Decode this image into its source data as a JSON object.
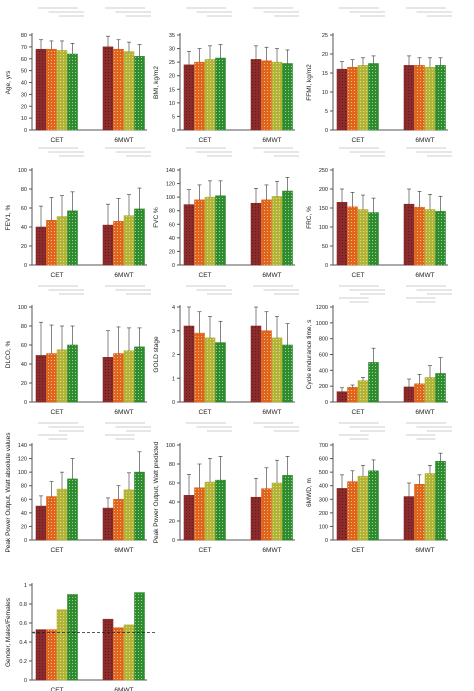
{
  "colors": {
    "series": [
      "#8B2B2B",
      "#E0651A",
      "#B3B336",
      "#2E8B2E"
    ],
    "axis": "#555555",
    "sig_line": "#999999"
  },
  "chart_data": [
    {
      "type": "bar",
      "ylabel": "Age, yrs",
      "ylim": [
        0,
        80
      ],
      "yticks": [
        0,
        10,
        20,
        30,
        40,
        50,
        60,
        70,
        80
      ],
      "categories": [
        "CET",
        "6MWT"
      ],
      "series": [
        {
          "values": [
            68,
            70
          ],
          "errors": [
            8,
            9
          ]
        },
        {
          "values": [
            68,
            68
          ],
          "errors": [
            7,
            8
          ]
        },
        {
          "values": [
            67,
            66
          ],
          "errors": [
            8,
            8
          ]
        },
        {
          "values": [
            64,
            62
          ],
          "errors": [
            9,
            10
          ]
        }
      ],
      "sig_lines": [
        [
          1,
          4
        ],
        [
          5,
          4
        ],
        [
          6,
          3
        ]
      ]
    },
    {
      "type": "bar",
      "ylabel": "BMI, kg/m2",
      "ylim": [
        0,
        35
      ],
      "yticks": [
        0,
        5,
        10,
        15,
        20,
        25,
        30,
        35
      ],
      "categories": [
        "CET",
        "6MWT"
      ],
      "series": [
        {
          "values": [
            24,
            26
          ],
          "errors": [
            5,
            5
          ]
        },
        {
          "values": [
            25,
            25.5
          ],
          "errors": [
            5,
            5
          ]
        },
        {
          "values": [
            26,
            25
          ],
          "errors": [
            5,
            5
          ]
        },
        {
          "values": [
            26.5,
            24.5
          ],
          "errors": [
            5,
            5
          ]
        }
      ],
      "sig_lines": [
        [
          1,
          4
        ],
        [
          5,
          4
        ],
        [
          6,
          3
        ]
      ]
    },
    {
      "type": "bar",
      "ylabel": "FFMI, kg/m2",
      "ylim": [
        0,
        25
      ],
      "yticks": [
        0,
        5,
        10,
        15,
        20,
        25
      ],
      "categories": [
        "CET",
        "6MWT"
      ],
      "series": [
        {
          "values": [
            16,
            17
          ],
          "errors": [
            2,
            2.5
          ]
        },
        {
          "values": [
            16.5,
            17
          ],
          "errors": [
            2,
            2
          ]
        },
        {
          "values": [
            17,
            16.5
          ],
          "errors": [
            2,
            2.5
          ]
        },
        {
          "values": [
            17.5,
            17
          ],
          "errors": [
            2,
            2
          ]
        }
      ],
      "sig_lines": [
        [
          1,
          4
        ],
        [
          2,
          4
        ],
        [
          3,
          3
        ]
      ]
    },
    {
      "type": "bar",
      "ylabel": "FEV1, %",
      "ylim": [
        0,
        100
      ],
      "yticks": [
        0,
        20,
        40,
        60,
        80,
        100
      ],
      "categories": [
        "CET",
        "6MWT"
      ],
      "series": [
        {
          "values": [
            40,
            42
          ],
          "errors": [
            22,
            22
          ]
        },
        {
          "values": [
            47,
            46
          ],
          "errors": [
            24,
            24
          ]
        },
        {
          "values": [
            51,
            52
          ],
          "errors": [
            22,
            22
          ]
        },
        {
          "values": [
            57,
            59
          ],
          "errors": [
            20,
            22
          ]
        }
      ],
      "sig_lines": [
        [
          1,
          4
        ],
        [
          2,
          4
        ],
        [
          3,
          3
        ]
      ]
    },
    {
      "type": "bar",
      "ylabel": "FVC %",
      "ylim": [
        0,
        140
      ],
      "yticks": [
        0,
        20,
        40,
        60,
        80,
        100,
        120,
        140
      ],
      "categories": [
        "CET",
        "6MWT"
      ],
      "series": [
        {
          "values": [
            89,
            91
          ],
          "errors": [
            22,
            22
          ]
        },
        {
          "values": [
            96,
            96
          ],
          "errors": [
            22,
            22
          ]
        },
        {
          "values": [
            100,
            101
          ],
          "errors": [
            24,
            22
          ]
        },
        {
          "values": [
            102,
            109
          ],
          "errors": [
            22,
            20
          ]
        }
      ],
      "sig_lines": [
        [
          1,
          4
        ],
        [
          2,
          4
        ],
        [
          3,
          3
        ]
      ]
    },
    {
      "type": "bar",
      "ylabel": "FRC, %",
      "ylim": [
        0,
        250
      ],
      "yticks": [
        0,
        50,
        100,
        150,
        200,
        250
      ],
      "categories": [
        "CET",
        "6MWT"
      ],
      "series": [
        {
          "values": [
            165,
            160
          ],
          "errors": [
            35,
            40
          ]
        },
        {
          "values": [
            153,
            152
          ],
          "errors": [
            38,
            42
          ]
        },
        {
          "values": [
            146,
            146
          ],
          "errors": [
            38,
            40
          ]
        },
        {
          "values": [
            138,
            141
          ],
          "errors": [
            38,
            40
          ]
        }
      ],
      "sig_lines": [
        [
          1,
          4
        ],
        [
          2,
          4
        ],
        [
          3,
          3
        ]
      ]
    },
    {
      "type": "bar",
      "ylabel": "DLCO, %",
      "ylim": [
        0,
        100
      ],
      "yticks": [
        0,
        20,
        40,
        60,
        80,
        100
      ],
      "categories": [
        "CET",
        "6MWT"
      ],
      "series": [
        {
          "values": [
            49,
            47
          ],
          "errors": [
            35,
            28
          ]
        },
        {
          "values": [
            51,
            51
          ],
          "errors": [
            30,
            28
          ]
        },
        {
          "values": [
            55,
            54
          ],
          "errors": [
            25,
            24
          ]
        },
        {
          "values": [
            60,
            58
          ],
          "errors": [
            20,
            20
          ]
        }
      ],
      "sig_lines": [
        [
          1,
          4
        ],
        [
          2,
          4
        ],
        [
          3,
          3
        ]
      ]
    },
    {
      "type": "bar",
      "ylabel": "GOLD stage",
      "ylim": [
        0,
        4
      ],
      "yticks": [
        0,
        1,
        2,
        3,
        4
      ],
      "categories": [
        "CET",
        "6MWT"
      ],
      "series": [
        {
          "values": [
            3.2,
            3.2
          ],
          "errors": [
            0.8,
            0.8
          ]
        },
        {
          "values": [
            2.9,
            3.0
          ],
          "errors": [
            0.9,
            0.8
          ]
        },
        {
          "values": [
            2.7,
            2.7
          ],
          "errors": [
            0.9,
            0.9
          ]
        },
        {
          "values": [
            2.5,
            2.4
          ],
          "errors": [
            0.9,
            0.9
          ]
        }
      ],
      "sig_lines": [
        [
          1,
          4
        ],
        [
          2,
          4
        ],
        [
          3,
          3
        ]
      ]
    },
    {
      "type": "bar",
      "ylabel": "Cycle endurance time, s",
      "ylim": [
        0,
        1200
      ],
      "yticks": [
        0,
        200,
        400,
        600,
        800,
        1000,
        1200
      ],
      "categories": [
        "CET",
        "6MWT"
      ],
      "series": [
        {
          "values": [
            130,
            190
          ],
          "errors": [
            50,
            100
          ]
        },
        {
          "values": [
            185,
            230
          ],
          "errors": [
            30,
            120
          ]
        },
        {
          "values": [
            270,
            310
          ],
          "errors": [
            40,
            150
          ]
        },
        {
          "values": [
            500,
            360
          ],
          "errors": [
            180,
            200
          ]
        }
      ],
      "sig_lines": [
        [
          1,
          4
        ],
        [
          2,
          4
        ],
        [
          3,
          3
        ],
        [
          4,
          3
        ],
        [
          5,
          2
        ]
      ]
    },
    {
      "type": "bar",
      "ylabel": "Peak Power Output, Watt absolute values",
      "ylim": [
        0,
        140
      ],
      "yticks": [
        0,
        20,
        40,
        60,
        80,
        100,
        120,
        140
      ],
      "categories": [
        "CET",
        "6MWT"
      ],
      "series": [
        {
          "values": [
            50,
            47
          ],
          "errors": [
            15,
            15
          ]
        },
        {
          "values": [
            64,
            60
          ],
          "errors": [
            22,
            20
          ]
        },
        {
          "values": [
            75,
            74
          ],
          "errors": [
            25,
            25
          ]
        },
        {
          "values": [
            90,
            100
          ],
          "errors": [
            30,
            30
          ]
        }
      ],
      "sig_lines": [
        [
          1,
          4
        ],
        [
          2,
          4
        ],
        [
          3,
          3
        ],
        [
          4,
          3
        ],
        [
          5,
          2
        ]
      ]
    },
    {
      "type": "bar",
      "ylabel": "Peak Power Output, Watt predicted",
      "ylim": [
        0,
        100
      ],
      "yticks": [
        0,
        20,
        40,
        60,
        80,
        100
      ],
      "categories": [
        "CET",
        "6MWT"
      ],
      "series": [
        {
          "values": [
            47,
            45
          ],
          "errors": [
            22,
            20
          ]
        },
        {
          "values": [
            55,
            54
          ],
          "errors": [
            25,
            22
          ]
        },
        {
          "values": [
            61,
            60
          ],
          "errors": [
            25,
            24
          ]
        },
        {
          "values": [
            63,
            68
          ],
          "errors": [
            25,
            20
          ]
        }
      ],
      "sig_lines": [
        [
          1,
          4
        ],
        [
          2,
          4
        ],
        [
          3,
          3
        ]
      ]
    },
    {
      "type": "bar",
      "ylabel": "6MWD, m",
      "ylim": [
        0,
        700
      ],
      "yticks": [
        0,
        100,
        200,
        300,
        400,
        500,
        600,
        700
      ],
      "categories": [
        "CET",
        "6MWT"
      ],
      "series": [
        {
          "values": [
            380,
            320
          ],
          "errors": [
            100,
            100
          ]
        },
        {
          "values": [
            430,
            410
          ],
          "errors": [
            80,
            70
          ]
        },
        {
          "values": [
            470,
            490
          ],
          "errors": [
            80,
            60
          ]
        },
        {
          "values": [
            510,
            580
          ],
          "errors": [
            80,
            60
          ]
        }
      ],
      "sig_lines": [
        [
          1,
          4
        ],
        [
          2,
          4
        ],
        [
          3,
          3
        ],
        [
          4,
          3
        ],
        [
          5,
          2
        ]
      ]
    },
    {
      "type": "bar",
      "ylabel": "Gender, Males/Females",
      "ylim": [
        0,
        1.0
      ],
      "yticks": [
        0,
        0.2,
        0.4,
        0.6,
        0.8,
        1.0
      ],
      "categories": [
        "CET",
        "6MWT"
      ],
      "series": [
        {
          "values": [
            0.53,
            0.64
          ],
          "errors": [
            0,
            0
          ]
        },
        {
          "values": [
            0.53,
            0.55
          ],
          "errors": [
            0,
            0
          ]
        },
        {
          "values": [
            0.74,
            0.58
          ],
          "errors": [
            0,
            0
          ]
        },
        {
          "values": [
            0.9,
            0.92
          ],
          "errors": [
            0,
            0
          ]
        }
      ],
      "reference_line": 0.5,
      "reference_label": "0.5",
      "sig_lines": []
    }
  ]
}
